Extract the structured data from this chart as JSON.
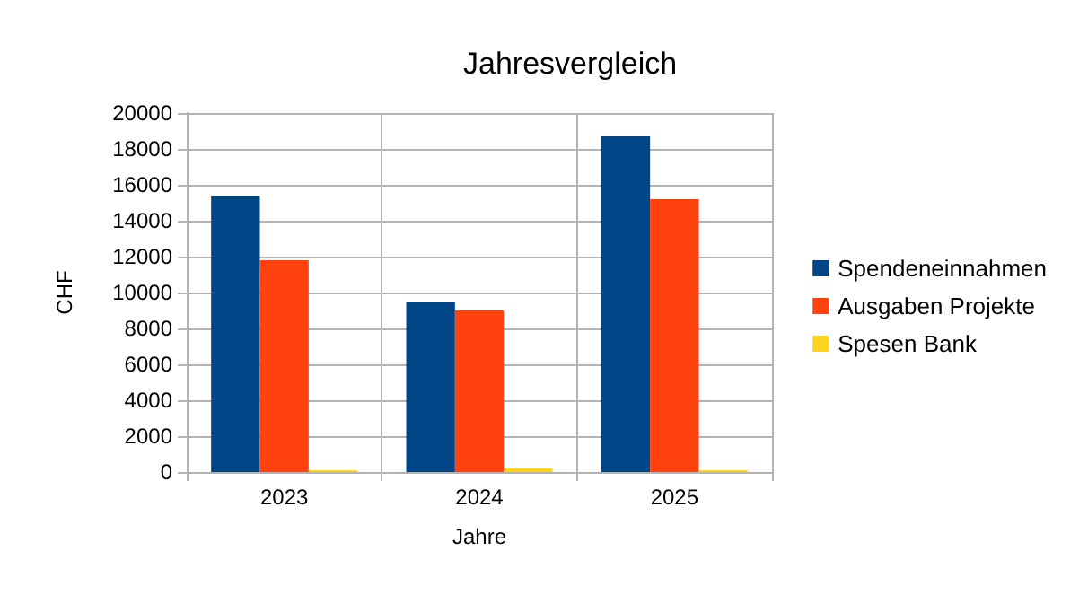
{
  "chart_data": {
    "type": "bar",
    "title": "Jahresvergleich",
    "xlabel": "Jahre",
    "ylabel": "CHF",
    "categories": [
      "2023",
      "2024",
      "2025"
    ],
    "series": [
      {
        "name": "Spendeneinnahmen",
        "color": "#004586",
        "values": [
          15400,
          9500,
          18700
        ]
      },
      {
        "name": "Ausgaben Projekte",
        "color": "#ff420e",
        "values": [
          11800,
          9000,
          15200
        ]
      },
      {
        "name": "Spesen Bank",
        "color": "#ffd320",
        "values": [
          100,
          200,
          100
        ]
      }
    ],
    "ylim": [
      0,
      20000
    ],
    "yticks": [
      0,
      2000,
      4000,
      6000,
      8000,
      10000,
      12000,
      14000,
      16000,
      18000,
      20000
    ],
    "grid": true,
    "legend": "right"
  }
}
